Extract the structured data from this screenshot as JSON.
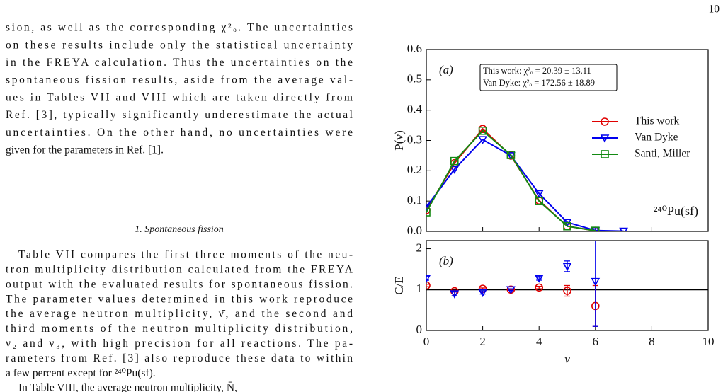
{
  "page_number": "10",
  "paragraphs": [
    {
      "lines": [
        "sion, as well as the corresponding χ²ₒ. The uncertainties",
        "on these results include only the statistical uncertainty",
        "in the FREYA calculation. Thus the uncertainties on the",
        "spontaneous fission results, aside from the average val-",
        "ues in Tables VII and VIII which are taken directly from",
        "Ref. [3], typically significantly underestimate the actual",
        "uncertainties. On the other hand, no uncertainties were",
        "given for the parameters in Ref. [1]."
      ]
    },
    {
      "lines": [
        "Table VII compares the first three moments of the neu-",
        "tron multiplicity distribution calculated from the FREYA",
        "output with the evaluated results for spontaneous fission.",
        "The parameter values determined in this work reproduce",
        "the average neutron multiplicity, ν̄, and the second and",
        "third moments of the neutron multiplicity distribution,",
        "ν₂ and ν₃, with high precision for all reactions. The pa-",
        "rameters from Ref. [3] also reproduce these data to within",
        "a few percent except for ²⁴⁰Pu(sf)."
      ]
    },
    {
      "lines": [
        "In Table VIII, the average neutron multiplicity, N̄,"
      ]
    }
  ],
  "section_heading": "1. Spontaneous fission",
  "chart_data": [
    {
      "type": "line",
      "panel_label": "(a)",
      "fit_box": [
        "This work: χ²ₒ = 20.39 ± 13.11",
        "Van Dyke: χ²ₒ = 172.56 ± 18.89"
      ],
      "reaction_label": "²⁴⁰Pu(sf)",
      "ylabel": "P(ν)",
      "x": [
        0,
        1,
        2,
        3,
        4,
        5,
        6,
        7
      ],
      "xlim": [
        0,
        10
      ],
      "ylim": [
        0,
        0.6
      ],
      "yticks": [
        {
          "value": 0,
          "label": "0.0"
        },
        0.1,
        0.2,
        0.3,
        0.4,
        0.5,
        0.6
      ],
      "legend": "right",
      "series": [
        {
          "name": "This work",
          "color": "#e00000",
          "marker": "circle",
          "values": [
            0.07,
            0.225,
            0.338,
            0.25,
            0.102,
            0.017,
            0.002,
            null
          ]
        },
        {
          "name": "Van Dyke",
          "color": "#0000ee",
          "marker": "triangle-down",
          "values": [
            0.08,
            0.205,
            0.303,
            0.25,
            0.125,
            0.03,
            0.003,
            0.001
          ]
        },
        {
          "name": "Santi, Miller",
          "color": "#138a13",
          "marker": "square",
          "values": [
            0.063,
            0.232,
            0.332,
            0.252,
            0.1,
            0.017,
            0.002,
            null
          ]
        }
      ]
    },
    {
      "type": "errorbar",
      "panel_label": "(b)",
      "ylabel": "C/E",
      "xlabel": "ν",
      "x": [
        0,
        1,
        2,
        3,
        4,
        5,
        6
      ],
      "xlim": [
        0,
        10
      ],
      "xticks": [
        0,
        2,
        4,
        6,
        8,
        10
      ],
      "ylim": [
        0,
        2.2
      ],
      "yticks": [
        0,
        1,
        2
      ],
      "hline": 1,
      "series": [
        {
          "name": "This work",
          "color": "#e00000",
          "marker": "circle",
          "values": [
            1.1,
            0.96,
            1.02,
            1.0,
            1.05,
            0.97,
            0.6
          ],
          "errors": [
            0.03,
            0.02,
            0.02,
            0.01,
            0.03,
            0.13,
            0.5
          ]
        },
        {
          "name": "Van Dyke",
          "color": "#0000ee",
          "marker": "triangle-down",
          "values": [
            1.28,
            0.9,
            0.93,
            1.0,
            1.28,
            1.57,
            1.2
          ],
          "errors": [
            0.05,
            0.05,
            0.04,
            0.02,
            0.05,
            0.13,
            1.1
          ]
        }
      ]
    }
  ]
}
